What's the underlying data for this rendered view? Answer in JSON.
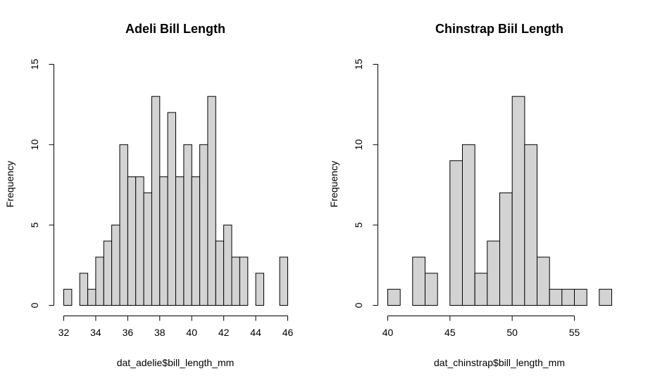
{
  "colors": {
    "bar_fill": "#d3d3d3",
    "bar_stroke": "#000000",
    "background": "#ffffff"
  },
  "chart_data": [
    {
      "type": "bar",
      "title": "Adeli Bill Length",
      "xlabel": "dat_adelie$bill_length_mm",
      "ylabel": "Frequency",
      "xlim": [
        32,
        46
      ],
      "ylim": [
        0,
        15
      ],
      "x_ticks": [
        32,
        34,
        36,
        38,
        40,
        42,
        44,
        46
      ],
      "y_ticks": [
        0,
        5,
        10,
        15
      ],
      "bin_width": 0.5,
      "bin_edges": [
        32,
        32.5,
        33,
        33.5,
        34,
        34.5,
        35,
        35.5,
        36,
        36.5,
        37,
        37.5,
        38,
        38.5,
        39,
        39.5,
        40,
        40.5,
        41,
        41.5,
        42,
        42.5,
        43,
        43.5,
        44,
        44.5,
        45,
        45.5,
        46
      ],
      "counts": [
        1,
        0,
        2,
        1,
        3,
        4,
        5,
        10,
        8,
        8,
        7,
        13,
        8,
        12,
        8,
        10,
        8,
        10,
        13,
        4,
        5,
        3,
        3,
        0,
        2,
        0,
        0,
        3
      ]
    },
    {
      "type": "bar",
      "title": "Chinstrap Biil Length",
      "xlabel": "dat_chinstrap$bill_length_mm",
      "ylabel": "Frequency",
      "xlim": [
        40,
        58
      ],
      "ylim": [
        0,
        15
      ],
      "x_ticks": [
        40,
        45,
        50,
        55
      ],
      "y_ticks": [
        0,
        5,
        10,
        15
      ],
      "bin_width": 1,
      "bin_edges": [
        40,
        41,
        42,
        43,
        44,
        45,
        46,
        47,
        48,
        49,
        50,
        51,
        52,
        53,
        54,
        55,
        56,
        57,
        58
      ],
      "counts": [
        1,
        0,
        3,
        2,
        0,
        9,
        10,
        2,
        4,
        7,
        13,
        10,
        3,
        1,
        1,
        1,
        0,
        1
      ]
    }
  ]
}
